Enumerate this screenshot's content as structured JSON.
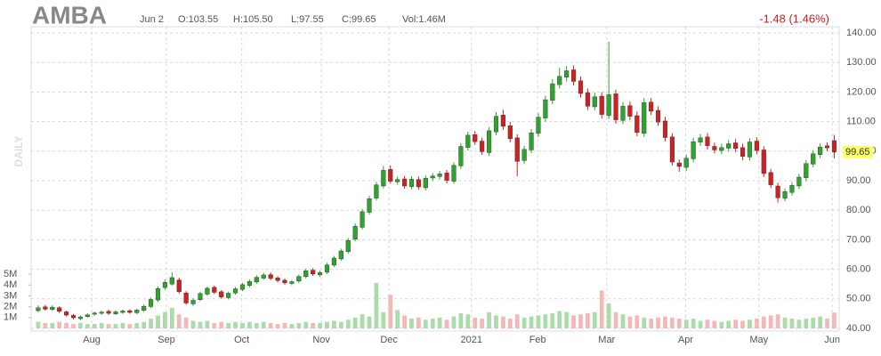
{
  "chart_data": {
    "type": "candlestick",
    "title": "AMBA",
    "date": "Jun 2",
    "quote": {
      "open": "O:103.55",
      "high": "H:105.50",
      "low": "L:97.55",
      "close": "C:99.65",
      "volume": "Vol:1.46M"
    },
    "change": "-1.48 (1.46%)",
    "watermark": "DAILY",
    "last_price": 99.65,
    "open": [
      46,
      47.3,
      46.4,
      47.0,
      45.6,
      44.4,
      43.3,
      44.0,
      44.8,
      45.1,
      45.8,
      44.9,
      45.4,
      46.0,
      45.3,
      46.1,
      47.4,
      49.6,
      53.8,
      55.0,
      56.4,
      52.0,
      48.3,
      49.7,
      51.6,
      53.9,
      52.4,
      50.4,
      52.0,
      53.2,
      54.5,
      55.7,
      57.0,
      58.2,
      57.1,
      56.3,
      55.2,
      56.0,
      57.5,
      59.7,
      58.1,
      59.0,
      61.4,
      63.5,
      66.0,
      70.2,
      74.2,
      79.3,
      84.1,
      88.2,
      93.8,
      89.6,
      90.6,
      88.0,
      90.4,
      87.6,
      90.9,
      91.4,
      92.6,
      89.8,
      95.0,
      101.2,
      105.6,
      103.4,
      99.5,
      106.5,
      112.2,
      108.6,
      104.5,
      96.8,
      100.4,
      106.0,
      111.2,
      117.2,
      122.5,
      125.0,
      127.5,
      123.8,
      119.8,
      115.0,
      118.6,
      112.0,
      119.4,
      110.4,
      115.4,
      112.0,
      106.0,
      116.6,
      113.8,
      110.2,
      104.8,
      96.0,
      94.5,
      97.4,
      103.0,
      104.8,
      101.6,
      100.2,
      101.0,
      102.8,
      101.2,
      98.0,
      103.4,
      100.4,
      92.8,
      88.2,
      84.0,
      86.0,
      88.2,
      91.0,
      95.6,
      98.8,
      101.8,
      103.55
    ],
    "high": [
      47.8,
      48.0,
      47.8,
      47.5,
      46.0,
      44.9,
      44.4,
      45.1,
      45.7,
      46.0,
      46.3,
      46.1,
      46.4,
      46.5,
      46.7,
      48.1,
      50.4,
      54.2,
      56.5,
      59.0,
      57.2,
      52.6,
      50.2,
      52.4,
      54.2,
      54.5,
      53.0,
      52.5,
      54.0,
      55.4,
      56.6,
      58.0,
      58.8,
      58.9,
      57.7,
      56.9,
      56.4,
      58.2,
      60.2,
      60.4,
      59.6,
      62.2,
      64.5,
      67.0,
      70.6,
      75.5,
      80.4,
      84.9,
      89.6,
      95.0,
      95.2,
      91.4,
      91.6,
      91.5,
      91.4,
      91.8,
      92.6,
      93.3,
      93.6,
      96.2,
      102.8,
      106.6,
      106.8,
      104.6,
      108.1,
      113.2,
      114.0,
      109.9,
      105.7,
      101.8,
      107.5,
      112.8,
      118.8,
      124.3,
      128.2,
      128.8,
      129.0,
      125.3,
      121.2,
      119.8,
      120.0,
      137.0,
      120.8,
      116.6,
      116.8,
      113.4,
      118.0,
      118.0,
      115.2,
      111.6,
      106.1,
      97.2,
      98.8,
      104.5,
      105.8,
      106.1,
      102.9,
      102.5,
      103.8,
      104.1,
      102.5,
      104.4,
      104.7,
      101.7,
      94.0,
      89.3,
      87.4,
      89.5,
      92.3,
      97.0,
      100.3,
      102.6,
      103.0,
      105.5
    ],
    "low": [
      45.5,
      46.0,
      45.9,
      45.2,
      44.0,
      43.1,
      42.8,
      43.6,
      44.3,
      44.6,
      44.6,
      44.5,
      44.9,
      44.9,
      44.8,
      45.6,
      46.9,
      49.0,
      53.0,
      54.5,
      51.8,
      48.0,
      47.6,
      49.2,
      51.0,
      51.6,
      50.0,
      49.8,
      51.4,
      52.6,
      53.9,
      55.1,
      56.4,
      56.3,
      55.6,
      54.8,
      54.6,
      55.4,
      56.9,
      57.8,
      57.4,
      58.4,
      60.8,
      62.9,
      65.3,
      69.5,
      73.5,
      78.5,
      83.3,
      87.4,
      89.0,
      88.6,
      87.3,
      87.1,
      87.0,
      86.7,
      89.9,
      90.4,
      89.1,
      88.9,
      94.0,
      100.2,
      102.1,
      98.7,
      98.4,
      105.3,
      107.2,
      103.0,
      91.5,
      95.6,
      99.3,
      104.8,
      110.0,
      115.9,
      121.2,
      123.6,
      122.2,
      118.1,
      113.9,
      113.7,
      111.0,
      110.8,
      109.3,
      109.1,
      110.5,
      105.0,
      104.8,
      112.2,
      108.5,
      103.3,
      95.1,
      93.0,
      93.3,
      96.2,
      101.7,
      100.5,
      99.2,
      99.0,
      99.8,
      99.6,
      97.0,
      96.8,
      98.9,
      91.2,
      87.5,
      82.6,
      83.0,
      85.0,
      87.2,
      89.9,
      94.5,
      97.6,
      100.0,
      97.55
    ],
    "close": [
      47,
      46.5,
      47.2,
      45.8,
      44.5,
      43.6,
      43.9,
      44.6,
      45.2,
      45.5,
      45.1,
      45.6,
      45.9,
      45.4,
      46.2,
      47.5,
      49.8,
      53.5,
      55.6,
      57.2,
      52.4,
      48.6,
      49.5,
      51.8,
      53.6,
      52.2,
      50.6,
      51.9,
      53.4,
      54.8,
      55.9,
      57.3,
      58.1,
      56.9,
      56.2,
      55.4,
      55.8,
      57.6,
      59.5,
      58.4,
      58.9,
      61.5,
      63.8,
      66.2,
      69.8,
      74.6,
      79.5,
      83.9,
      88.6,
      93.5,
      89.8,
      90.4,
      88.2,
      90.5,
      87.9,
      90.8,
      91.6,
      92.3,
      90.1,
      95.2,
      101.6,
      105.4,
      103.2,
      99.8,
      106.9,
      111.8,
      108.4,
      104.2,
      96.5,
      100.6,
      106.2,
      111.5,
      117.4,
      122.8,
      125.3,
      127.2,
      123.6,
      119.5,
      115.2,
      118.4,
      112.4,
      119.1,
      110.6,
      115.2,
      111.8,
      106.3,
      116.4,
      113.5,
      109.8,
      104.6,
      96.3,
      94.8,
      97.6,
      103.2,
      104.5,
      101.8,
      100.4,
      101.2,
      102.5,
      100.9,
      98.2,
      103.1,
      100.2,
      92.4,
      88.6,
      84.2,
      86.3,
      88.4,
      91.2,
      95.8,
      99.1,
      101.4,
      101.1,
      99.65
    ],
    "volume": [
      0.6,
      0.5,
      0.5,
      0.6,
      0.5,
      0.4,
      0.5,
      0.4,
      0.4,
      0.5,
      0.4,
      0.4,
      0.5,
      0.4,
      0.5,
      0.6,
      0.9,
      1.2,
      1.5,
      1.9,
      1.3,
      1.0,
      0.7,
      0.6,
      0.7,
      0.5,
      0.6,
      0.5,
      0.6,
      0.5,
      0.6,
      0.5,
      0.6,
      0.5,
      0.4,
      0.5,
      0.4,
      0.5,
      0.6,
      0.5,
      0.5,
      0.6,
      0.7,
      0.6,
      0.8,
      1.0,
      1.3,
      1.1,
      4.2,
      1.5,
      3.1,
      1.7,
      1.2,
      0.9,
      1.0,
      0.8,
      0.9,
      1.0,
      0.8,
      1.1,
      1.4,
      1.3,
      1.0,
      0.9,
      1.5,
      1.2,
      1.1,
      0.9,
      1.3,
      1.0,
      1.1,
      1.2,
      1.3,
      1.4,
      1.6,
      1.5,
      1.2,
      1.3,
      1.4,
      1.5,
      3.5,
      2.3,
      1.5,
      1.3,
      1.1,
      1.2,
      1.0,
      0.9,
      1.0,
      1.1,
      1.0,
      0.9,
      0.8,
      0.9,
      0.7,
      0.8,
      0.7,
      0.6,
      0.7,
      0.8,
      0.7,
      0.8,
      0.9,
      1.1,
      1.2,
      1.3,
      1.0,
      0.9,
      0.8,
      0.9,
      1.0,
      1.1,
      0.9,
      1.46
    ],
    "up_color": "#2ea32e",
    "down_color": "#d02020",
    "up_volume_color": "#a9dca9",
    "down_volume_color": "#f5b8b8",
    "ylim": [
      40,
      140
    ],
    "yticks": [
      {
        "value": 40,
        "label": "40.00"
      },
      {
        "value": 50,
        "label": "50.00"
      },
      {
        "value": 60,
        "label": "60.00"
      },
      {
        "value": 70,
        "label": "70.00"
      },
      {
        "value": 80,
        "label": "80.00"
      },
      {
        "value": 90,
        "label": "90.00"
      },
      {
        "value": 100,
        "label": "100.00"
      },
      {
        "value": 110,
        "label": "110.00"
      },
      {
        "value": 120,
        "label": "120.00"
      },
      {
        "value": 130,
        "label": "130.00"
      },
      {
        "value": 140,
        "label": "140.00"
      }
    ],
    "volume_lim": [
      0,
      5.5
    ],
    "volume_ticks": [
      {
        "value": 1,
        "label": "1M"
      },
      {
        "value": 2,
        "label": "2M"
      },
      {
        "value": 3,
        "label": "3M"
      },
      {
        "value": 4,
        "label": "4M"
      },
      {
        "value": 5,
        "label": "5M"
      }
    ],
    "xlim": [
      -1,
      113.7
    ],
    "xticks": [
      {
        "value": 7.6,
        "label": "Aug"
      },
      {
        "value": 18.2,
        "label": "Sep"
      },
      {
        "value": 28.9,
        "label": "Oct"
      },
      {
        "value": 40.2,
        "label": "Nov"
      },
      {
        "value": 49.8,
        "label": "Dec"
      },
      {
        "value": 61.5,
        "label": "2021"
      },
      {
        "value": 70.9,
        "label": "Feb"
      },
      {
        "value": 80.7,
        "label": "Mar"
      },
      {
        "value": 91.9,
        "label": "Apr"
      },
      {
        "value": 102.3,
        "label": "May"
      },
      {
        "value": 112.7,
        "label": "Jun"
      }
    ],
    "grid": true
  }
}
